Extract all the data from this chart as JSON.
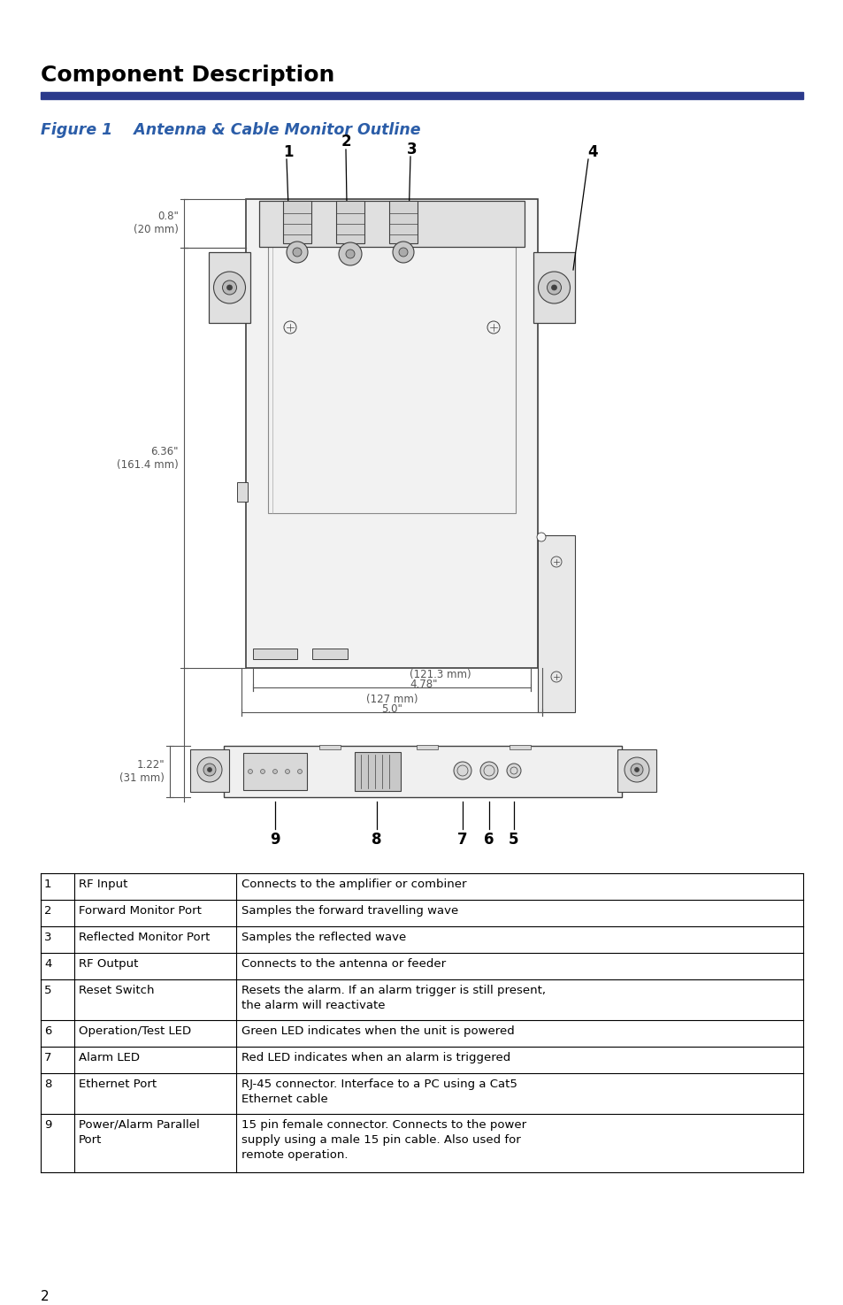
{
  "title": "Component Description",
  "title_color": "#000000",
  "title_bar_color": "#2B3A8C",
  "fig_caption": "Figure 1    Antenna & Cable Monitor Outline",
  "fig_caption_color": "#2B5DA8",
  "background_color": "#ffffff",
  "table_data": [
    [
      "1",
      "RF Input",
      "Connects to the amplifier or combiner"
    ],
    [
      "2",
      "Forward Monitor Port",
      "Samples the forward travelling wave"
    ],
    [
      "3",
      "Reflected Monitor Port",
      "Samples the reflected wave"
    ],
    [
      "4",
      "RF Output",
      "Connects to the antenna or feeder"
    ],
    [
      "5",
      "Reset Switch",
      "Resets the alarm. If an alarm trigger is still present,\nthe alarm will reactivate"
    ],
    [
      "6",
      "Operation/Test LED",
      "Green LED indicates when the unit is powered"
    ],
    [
      "7",
      "Alarm LED",
      "Red LED indicates when an alarm is triggered"
    ],
    [
      "8",
      "Ethernet Port",
      "RJ-45 connector. Interface to a PC using a Cat5\nEthernet cable"
    ],
    [
      "9",
      "Power/Alarm Parallel\nPort",
      "15 pin female connector. Connects to the power\nsupply using a male 15 pin cable. Also used for\nremote operation."
    ]
  ],
  "page_number": "2",
  "diagram_color": "#404040",
  "dim_color": "#555555"
}
